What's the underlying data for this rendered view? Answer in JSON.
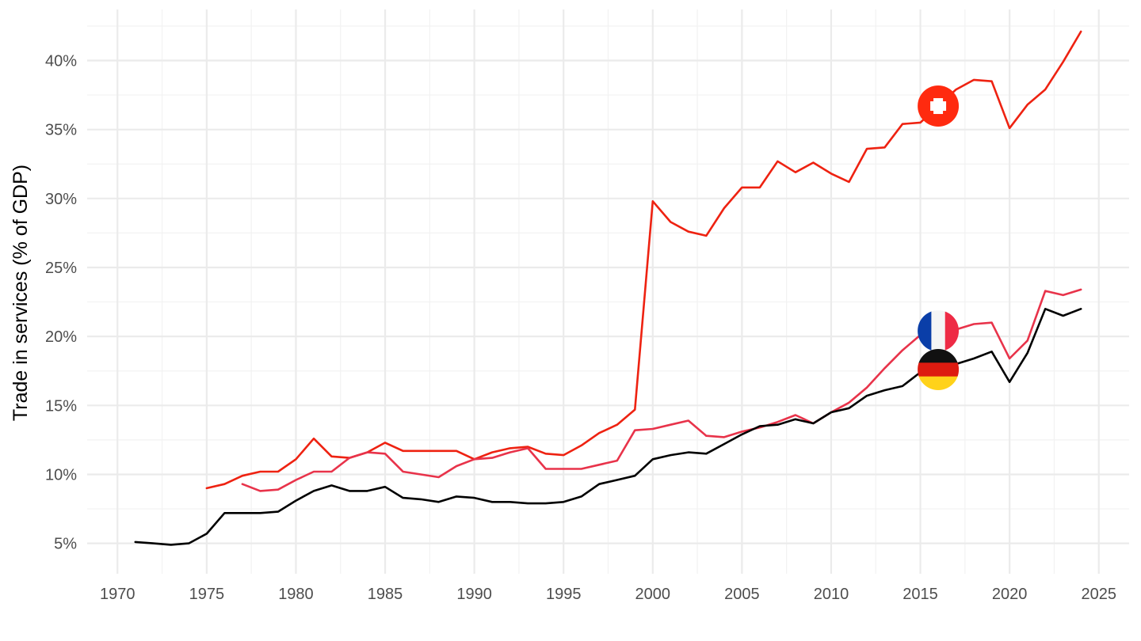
{
  "chart_data": {
    "type": "line",
    "title": "",
    "xlabel": "",
    "ylabel": "Trade in services (% of GDP)",
    "xlim": [
      1968.3,
      2026.7
    ],
    "ylim": [
      2.8,
      43.7
    ],
    "x_ticks": [
      1970,
      1975,
      1980,
      1985,
      1990,
      1995,
      2000,
      2005,
      2010,
      2015,
      2020,
      2025
    ],
    "y_ticks": [
      5,
      10,
      15,
      20,
      25,
      30,
      35,
      40
    ],
    "y_tick_labels": [
      "5%",
      "10%",
      "15%",
      "20%",
      "25%",
      "30%",
      "35%",
      "40%"
    ],
    "grid": true,
    "legend": "flag markers at 2016",
    "marker_year": 2016,
    "series": [
      {
        "id": "switzerland",
        "color": "#ee2211",
        "flag": "switzerland-flag",
        "marker_value": 36.7,
        "points": [
          [
            1975,
            9.0
          ],
          [
            1976,
            9.3
          ],
          [
            1977,
            9.9
          ],
          [
            1978,
            10.2
          ],
          [
            1979,
            10.2
          ],
          [
            1980,
            11.1
          ],
          [
            1981,
            12.6
          ],
          [
            1982,
            11.3
          ],
          [
            1983,
            11.2
          ],
          [
            1984,
            11.6
          ],
          [
            1985,
            12.3
          ],
          [
            1986,
            11.7
          ],
          [
            1987,
            11.7
          ],
          [
            1988,
            11.7
          ],
          [
            1989,
            11.7
          ],
          [
            1990,
            11.1
          ],
          [
            1991,
            11.6
          ],
          [
            1992,
            11.9
          ],
          [
            1993,
            12.0
          ],
          [
            1994,
            11.5
          ],
          [
            1995,
            11.4
          ],
          [
            1996,
            12.1
          ],
          [
            1997,
            13.0
          ],
          [
            1998,
            13.6
          ],
          [
            1999,
            14.7
          ],
          [
            2000,
            29.8
          ],
          [
            2001,
            28.3
          ],
          [
            2002,
            27.6
          ],
          [
            2003,
            27.3
          ],
          [
            2004,
            29.3
          ],
          [
            2005,
            30.8
          ],
          [
            2006,
            30.8
          ],
          [
            2007,
            32.7
          ],
          [
            2008,
            31.9
          ],
          [
            2009,
            32.6
          ],
          [
            2010,
            31.8
          ],
          [
            2011,
            31.2
          ],
          [
            2012,
            33.6
          ],
          [
            2013,
            33.7
          ],
          [
            2014,
            35.4
          ],
          [
            2015,
            35.5
          ],
          [
            2016,
            36.7
          ],
          [
            2017,
            37.9
          ],
          [
            2018,
            38.6
          ],
          [
            2019,
            38.5
          ],
          [
            2020,
            35.1
          ],
          [
            2021,
            36.8
          ],
          [
            2022,
            37.9
          ],
          [
            2023,
            39.9
          ],
          [
            2024,
            42.1
          ]
        ]
      },
      {
        "id": "france",
        "color": "#e8334a",
        "flag": "france-flag",
        "marker_value": 20.4,
        "points": [
          [
            1977,
            9.3
          ],
          [
            1978,
            8.8
          ],
          [
            1979,
            8.9
          ],
          [
            1980,
            9.6
          ],
          [
            1981,
            10.2
          ],
          [
            1982,
            10.2
          ],
          [
            1983,
            11.2
          ],
          [
            1984,
            11.6
          ],
          [
            1985,
            11.5
          ],
          [
            1986,
            10.2
          ],
          [
            1987,
            10.0
          ],
          [
            1988,
            9.8
          ],
          [
            1989,
            10.6
          ],
          [
            1990,
            11.1
          ],
          [
            1991,
            11.2
          ],
          [
            1992,
            11.6
          ],
          [
            1993,
            11.9
          ],
          [
            1994,
            10.4
          ],
          [
            1995,
            10.4
          ],
          [
            1996,
            10.4
          ],
          [
            1997,
            10.7
          ],
          [
            1998,
            11.0
          ],
          [
            1999,
            13.2
          ],
          [
            2000,
            13.3
          ],
          [
            2001,
            13.6
          ],
          [
            2002,
            13.9
          ],
          [
            2003,
            12.8
          ],
          [
            2004,
            12.7
          ],
          [
            2005,
            13.1
          ],
          [
            2006,
            13.4
          ],
          [
            2007,
            13.8
          ],
          [
            2008,
            14.3
          ],
          [
            2009,
            13.7
          ],
          [
            2010,
            14.5
          ],
          [
            2011,
            15.2
          ],
          [
            2012,
            16.3
          ],
          [
            2013,
            17.7
          ],
          [
            2014,
            19.0
          ],
          [
            2015,
            20.1
          ],
          [
            2016,
            20.4
          ],
          [
            2017,
            20.5
          ],
          [
            2018,
            20.9
          ],
          [
            2019,
            21.0
          ],
          [
            2020,
            18.4
          ],
          [
            2021,
            19.7
          ],
          [
            2022,
            23.3
          ],
          [
            2023,
            23.0
          ],
          [
            2024,
            23.4
          ]
        ]
      },
      {
        "id": "germany",
        "color": "#000000",
        "flag": "germany-flag",
        "marker_value": 17.6,
        "points": [
          [
            1971,
            5.1
          ],
          [
            1972,
            5.0
          ],
          [
            1973,
            4.9
          ],
          [
            1974,
            5.0
          ],
          [
            1975,
            5.7
          ],
          [
            1976,
            7.2
          ],
          [
            1977,
            7.2
          ],
          [
            1978,
            7.2
          ],
          [
            1979,
            7.3
          ],
          [
            1980,
            8.1
          ],
          [
            1981,
            8.8
          ],
          [
            1982,
            9.2
          ],
          [
            1983,
            8.8
          ],
          [
            1984,
            8.8
          ],
          [
            1985,
            9.1
          ],
          [
            1986,
            8.3
          ],
          [
            1987,
            8.2
          ],
          [
            1988,
            8.0
          ],
          [
            1989,
            8.4
          ],
          [
            1990,
            8.3
          ],
          [
            1991,
            8.0
          ],
          [
            1992,
            8.0
          ],
          [
            1993,
            7.9
          ],
          [
            1994,
            7.9
          ],
          [
            1995,
            8.0
          ],
          [
            1996,
            8.4
          ],
          [
            1997,
            9.3
          ],
          [
            1998,
            9.6
          ],
          [
            1999,
            9.9
          ],
          [
            2000,
            11.1
          ],
          [
            2001,
            11.4
          ],
          [
            2002,
            11.6
          ],
          [
            2003,
            11.5
          ],
          [
            2004,
            12.2
          ],
          [
            2005,
            12.9
          ],
          [
            2006,
            13.5
          ],
          [
            2007,
            13.6
          ],
          [
            2008,
            14.0
          ],
          [
            2009,
            13.7
          ],
          [
            2010,
            14.5
          ],
          [
            2011,
            14.8
          ],
          [
            2012,
            15.7
          ],
          [
            2013,
            16.1
          ],
          [
            2014,
            16.4
          ],
          [
            2015,
            17.4
          ],
          [
            2016,
            17.6
          ],
          [
            2017,
            18.0
          ],
          [
            2018,
            18.4
          ],
          [
            2019,
            18.9
          ],
          [
            2020,
            16.7
          ],
          [
            2021,
            18.8
          ],
          [
            2022,
            22.0
          ],
          [
            2023,
            21.5
          ],
          [
            2024,
            22.0
          ]
        ]
      }
    ]
  }
}
